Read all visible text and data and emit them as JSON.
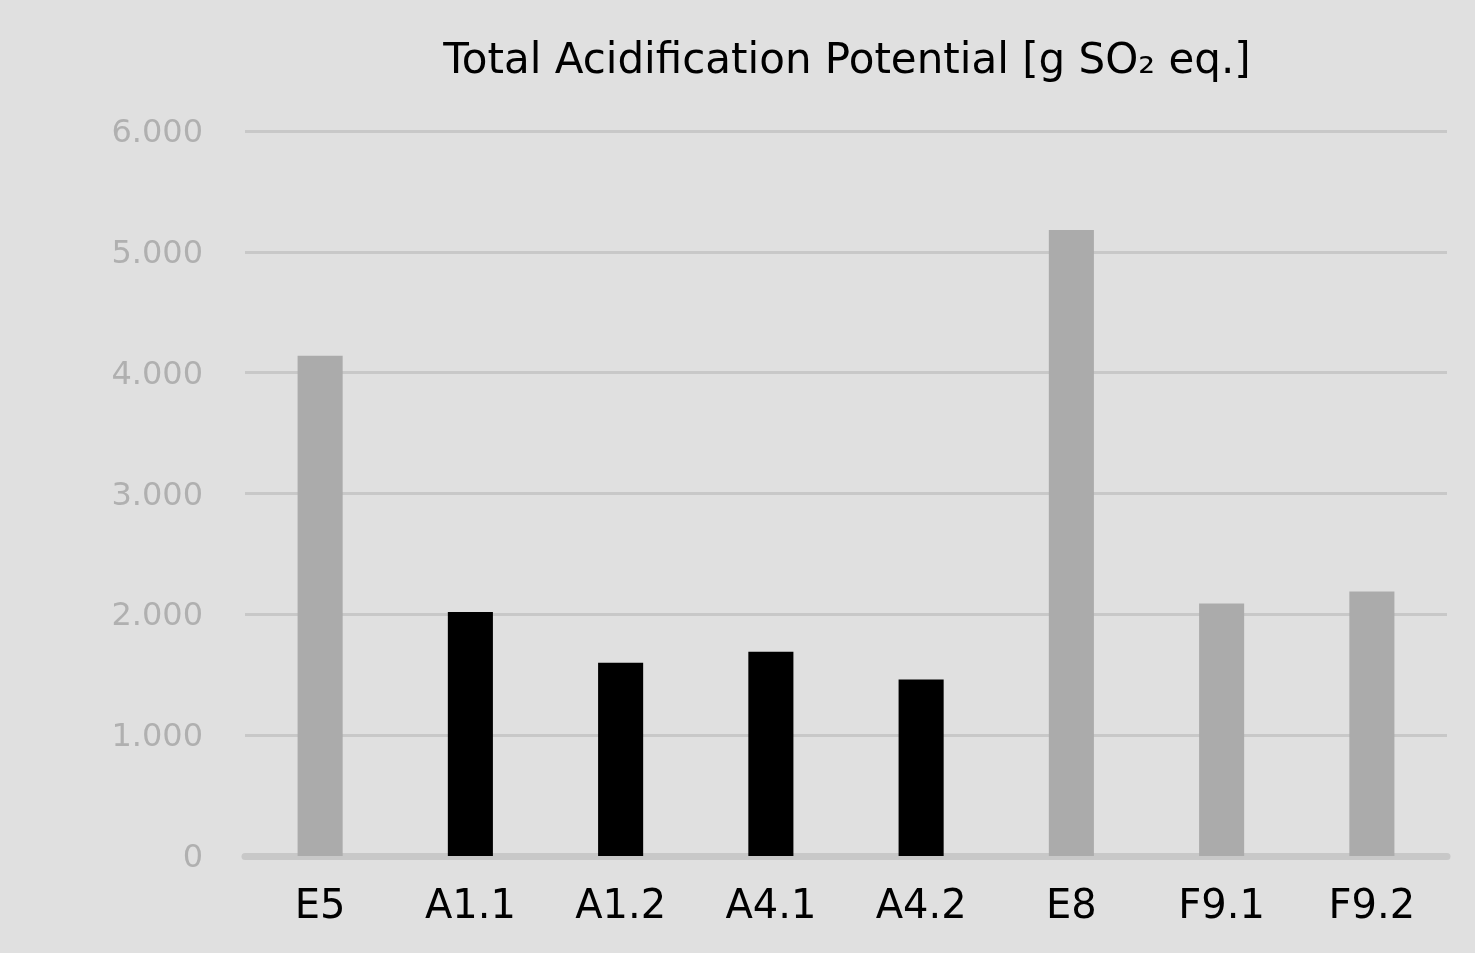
{
  "chart_data": {
    "type": "bar",
    "title": "Total Acidification Potential [g SO₂ eq.]",
    "categories": [
      "E5",
      "A1.1",
      "A1.2",
      "A4.1",
      "A4.2",
      "E8",
      "F9.1",
      "F9.2"
    ],
    "values": [
      4.14,
      2.02,
      1.6,
      1.69,
      1.46,
      5.18,
      2.09,
      2.19
    ],
    "colors": [
      "#ababab",
      "#000000",
      "#000000",
      "#000000",
      "#000000",
      "#ababab",
      "#ababab",
      "#ababab"
    ],
    "ylim": [
      0,
      6
    ],
    "yticks": [
      0,
      {
        "value": 1,
        "label": "1.000"
      },
      {
        "value": 2,
        "label": "2.000"
      },
      {
        "value": 3,
        "label": "3.000"
      },
      {
        "value": 4,
        "label": "4.000"
      },
      {
        "value": 5,
        "label": "5.000"
      },
      {
        "value": 6,
        "label": "6.000"
      }
    ],
    "grid": "y"
  }
}
